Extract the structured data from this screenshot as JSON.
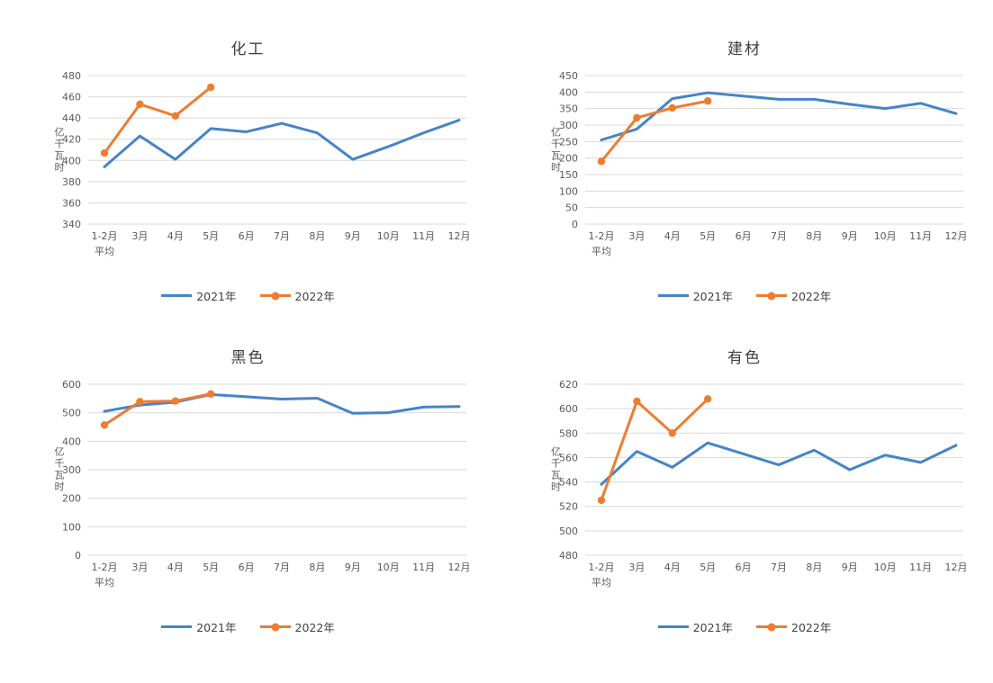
{
  "colors": {
    "series_2021": "#4584C8",
    "series_2022": "#ED7D31",
    "gridline": "#D9D9D9",
    "tick_text": "#595959",
    "title_text": "#3F3F3F"
  },
  "chart_data": [
    {
      "type": "line",
      "title": "化工",
      "ylabel": "亿千瓦时",
      "ylim": [
        340,
        480
      ],
      "ytick_step": 20,
      "grid": true,
      "legend_position": "bottom",
      "categories": [
        [
          "1-2月",
          "平均"
        ],
        "3月",
        "4月",
        "5月",
        "6月",
        "7月",
        "8月",
        "9月",
        "10月",
        "11月",
        "12月"
      ],
      "series": [
        {
          "name": "2021年",
          "color": "#4584C8",
          "marker": false,
          "values": [
            394,
            423,
            401,
            430,
            427,
            435,
            426,
            401,
            413,
            426,
            438
          ]
        },
        {
          "name": "2022年",
          "color": "#ED7D31",
          "marker": true,
          "values": [
            407,
            453,
            442,
            469
          ]
        }
      ]
    },
    {
      "type": "line",
      "title": "建材",
      "ylabel": "亿千瓦时",
      "ylim": [
        0,
        450
      ],
      "ytick_step": 50,
      "grid": true,
      "legend_position": "bottom",
      "categories": [
        [
          "1-2月",
          "平均"
        ],
        "3月",
        "4月",
        "5月",
        "6月",
        "7月",
        "8月",
        "9月",
        "10月",
        "11月",
        "12月"
      ],
      "series": [
        {
          "name": "2021年",
          "color": "#4584C8",
          "marker": false,
          "values": [
            255,
            288,
            380,
            398,
            388,
            378,
            378,
            363,
            350,
            366,
            335
          ]
        },
        {
          "name": "2022年",
          "color": "#ED7D31",
          "marker": true,
          "values": [
            190,
            322,
            352,
            373
          ]
        }
      ]
    },
    {
      "type": "line",
      "title": "黑色",
      "ylabel": "亿千瓦时",
      "ylim": [
        0,
        600
      ],
      "ytick_step": 100,
      "grid": true,
      "legend_position": "bottom",
      "categories": [
        [
          "1-2月",
          "平均"
        ],
        "3月",
        "4月",
        "5月",
        "6月",
        "7月",
        "8月",
        "9月",
        "10月",
        "11月",
        "12月"
      ],
      "series": [
        {
          "name": "2021年",
          "color": "#4584C8",
          "marker": false,
          "values": [
            505,
            527,
            537,
            564,
            556,
            548,
            551,
            498,
            500,
            520,
            522
          ]
        },
        {
          "name": "2022年",
          "color": "#ED7D31",
          "marker": true,
          "values": [
            457,
            539,
            541,
            566
          ]
        }
      ]
    },
    {
      "type": "line",
      "title": "有色",
      "ylabel": "亿千瓦时",
      "ylim": [
        480,
        620
      ],
      "ytick_step": 20,
      "grid": true,
      "legend_position": "bottom",
      "categories": [
        [
          "1-2月",
          "平均"
        ],
        "3月",
        "4月",
        "5月",
        "6月",
        "7月",
        "8月",
        "9月",
        "10月",
        "11月",
        "12月"
      ],
      "series": [
        {
          "name": "2021年",
          "color": "#4584C8",
          "marker": false,
          "values": [
            538,
            565,
            552,
            572,
            563,
            554,
            566,
            550,
            562,
            556,
            570
          ]
        },
        {
          "name": "2022年",
          "color": "#ED7D31",
          "marker": true,
          "values": [
            525,
            606,
            580,
            608
          ]
        }
      ]
    }
  ]
}
